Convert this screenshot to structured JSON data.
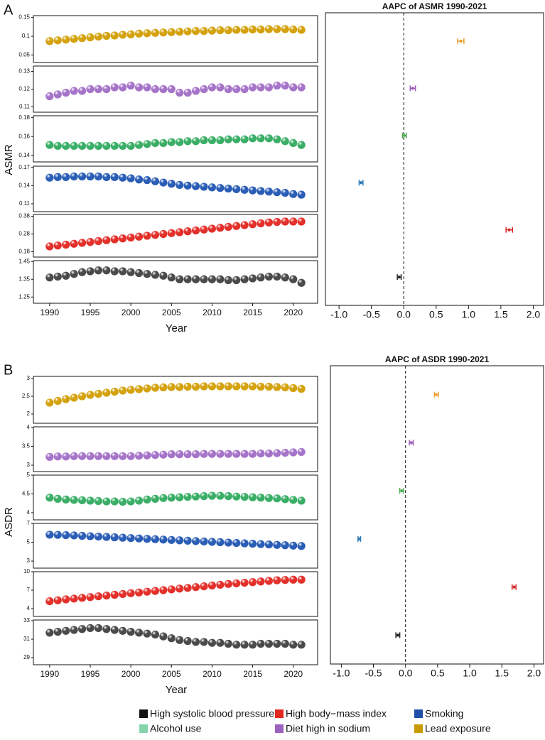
{
  "legend": [
    {
      "name": "High systolic blood pressure",
      "color": "#111111"
    },
    {
      "name": "High body−mass index",
      "color": "#e3281f"
    },
    {
      "name": "Smoking",
      "color": "#1f4fa8"
    },
    {
      "name": "Alcohol use",
      "color": "#85d3aa"
    },
    {
      "name": "Diet high in sodium",
      "color": "#9b62c0"
    },
    {
      "name": "Lead exposure",
      "color": "#c99a00"
    }
  ],
  "chart_data": [
    {
      "type": "line",
      "panel_label": "A",
      "xlabel": "Year",
      "ylabel": "ASMR",
      "x": [
        1990,
        1991,
        1992,
        1993,
        1994,
        1995,
        1996,
        1997,
        1998,
        1999,
        2000,
        2001,
        2002,
        2003,
        2004,
        2005,
        2006,
        2007,
        2008,
        2009,
        2010,
        2011,
        2012,
        2013,
        2014,
        2015,
        2016,
        2017,
        2018,
        2019,
        2020,
        2021
      ],
      "xlim": [
        1988,
        2023
      ],
      "xticks": [
        1990,
        1995,
        2000,
        2005,
        2010,
        2015,
        2020
      ],
      "series": [
        {
          "color": "#d4a20e",
          "ylim": [
            0.03,
            0.155
          ],
          "yticks": [
            0.05,
            0.1,
            0.15
          ],
          "values": [
            0.087,
            0.089,
            0.091,
            0.093,
            0.095,
            0.097,
            0.099,
            0.101,
            0.102,
            0.104,
            0.105,
            0.107,
            0.108,
            0.109,
            0.11,
            0.111,
            0.112,
            0.113,
            0.114,
            0.114,
            0.115,
            0.116,
            0.116,
            0.117,
            0.117,
            0.118,
            0.118,
            0.119,
            0.119,
            0.119,
            0.118,
            0.117
          ]
        },
        {
          "color": "#a574c9",
          "ylim": [
            0.107,
            0.133
          ],
          "yticks": [
            0.11,
            0.12,
            0.13
          ],
          "values": [
            0.116,
            0.117,
            0.118,
            0.119,
            0.119,
            0.12,
            0.12,
            0.12,
            0.121,
            0.121,
            0.122,
            0.121,
            0.121,
            0.12,
            0.12,
            0.12,
            0.118,
            0.118,
            0.119,
            0.12,
            0.121,
            0.121,
            0.12,
            0.12,
            0.12,
            0.121,
            0.121,
            0.121,
            0.122,
            0.122,
            0.121,
            0.121
          ]
        },
        {
          "color": "#3aae66",
          "ylim": [
            0.133,
            0.182
          ],
          "yticks": [
            0.14,
            0.16,
            0.18
          ],
          "values": [
            0.151,
            0.15,
            0.15,
            0.15,
            0.15,
            0.15,
            0.15,
            0.15,
            0.15,
            0.15,
            0.15,
            0.151,
            0.152,
            0.153,
            0.153,
            0.154,
            0.154,
            0.155,
            0.155,
            0.156,
            0.156,
            0.156,
            0.157,
            0.157,
            0.157,
            0.158,
            0.158,
            0.158,
            0.157,
            0.155,
            0.153,
            0.151
          ]
        },
        {
          "color": "#2a5db5",
          "ylim": [
            0.097,
            0.172
          ],
          "yticks": [
            0.11,
            0.14,
            0.17
          ],
          "values": [
            0.153,
            0.154,
            0.154,
            0.155,
            0.155,
            0.155,
            0.155,
            0.154,
            0.154,
            0.153,
            0.152,
            0.15,
            0.149,
            0.147,
            0.145,
            0.143,
            0.141,
            0.14,
            0.139,
            0.138,
            0.137,
            0.136,
            0.135,
            0.134,
            0.133,
            0.132,
            0.131,
            0.13,
            0.129,
            0.128,
            0.126,
            0.125
          ]
        },
        {
          "color": "#e3302a",
          "ylim": [
            0.15,
            0.39
          ],
          "yticks": [
            0.18,
            0.28,
            0.38
          ],
          "values": [
            0.21,
            0.215,
            0.22,
            0.225,
            0.23,
            0.235,
            0.24,
            0.245,
            0.25,
            0.255,
            0.26,
            0.265,
            0.27,
            0.275,
            0.28,
            0.285,
            0.29,
            0.295,
            0.3,
            0.305,
            0.31,
            0.315,
            0.32,
            0.325,
            0.33,
            0.335,
            0.34,
            0.345,
            0.348,
            0.35,
            0.35,
            0.35
          ]
        },
        {
          "color": "#4a4a4a",
          "ylim": [
            1.215,
            1.455
          ],
          "yticks": [
            1.25,
            1.35,
            1.45
          ],
          "values": [
            1.36,
            1.365,
            1.37,
            1.38,
            1.39,
            1.395,
            1.4,
            1.4,
            1.395,
            1.395,
            1.39,
            1.385,
            1.38,
            1.375,
            1.37,
            1.36,
            1.35,
            1.35,
            1.35,
            1.35,
            1.35,
            1.35,
            1.345,
            1.345,
            1.35,
            1.355,
            1.36,
            1.365,
            1.365,
            1.36,
            1.35,
            1.33
          ]
        }
      ]
    },
    {
      "type": "forest",
      "title": "AAPC of ASMR 1990-2021",
      "xlim": [
        -1.21,
        2.16
      ],
      "xticks": [
        {
          "value": -1,
          "label": "-1.0"
        },
        {
          "value": -0.5,
          "label": "-0.5"
        },
        {
          "value": 0,
          "label": "0.0"
        },
        {
          "value": 0.5,
          "label": "0.5"
        },
        {
          "value": 1,
          "label": "1.0"
        },
        {
          "value": 1.5,
          "label": "1.5"
        },
        {
          "value": 2,
          "label": "2.0"
        }
      ],
      "colors": [
        "#e8a030",
        "#9b59b6",
        "#4caf50",
        "#2a7ab8",
        "#d62728",
        "#222222"
      ],
      "values": [
        0.88,
        0.14,
        0.01,
        -0.66,
        1.63,
        -0.07
      ],
      "errors": [
        0.05,
        0.04,
        0.03,
        0.03,
        0.05,
        0.03
      ]
    },
    {
      "type": "line",
      "panel_label": "B",
      "xlabel": "Year",
      "ylabel": "ASDR",
      "x": [
        1990,
        1991,
        1992,
        1993,
        1994,
        1995,
        1996,
        1997,
        1998,
        1999,
        2000,
        2001,
        2002,
        2003,
        2004,
        2005,
        2006,
        2007,
        2008,
        2009,
        2010,
        2011,
        2012,
        2013,
        2014,
        2015,
        2016,
        2017,
        2018,
        2019,
        2020,
        2021
      ],
      "xlim": [
        1988,
        2023
      ],
      "xticks": [
        1990,
        1995,
        2000,
        2005,
        2010,
        2015,
        2020
      ],
      "series": [
        {
          "color": "#d4a20e",
          "ylim": [
            1.74,
            3.06
          ],
          "yticks": [
            2,
            2.5,
            3
          ],
          "values": [
            2.32,
            2.37,
            2.42,
            2.46,
            2.5,
            2.54,
            2.57,
            2.6,
            2.63,
            2.66,
            2.68,
            2.7,
            2.72,
            2.74,
            2.75,
            2.76,
            2.76,
            2.77,
            2.77,
            2.78,
            2.78,
            2.78,
            2.78,
            2.78,
            2.78,
            2.78,
            2.77,
            2.77,
            2.76,
            2.75,
            2.73,
            2.71
          ]
        },
        {
          "color": "#a574c9",
          "ylim": [
            2.83,
            4.02
          ],
          "yticks": [
            3,
            3.5,
            4
          ],
          "values": [
            3.22,
            3.23,
            3.23,
            3.24,
            3.24,
            3.24,
            3.24,
            3.24,
            3.24,
            3.24,
            3.24,
            3.25,
            3.26,
            3.27,
            3.28,
            3.29,
            3.29,
            3.29,
            3.29,
            3.3,
            3.3,
            3.3,
            3.3,
            3.3,
            3.3,
            3.3,
            3.31,
            3.31,
            3.32,
            3.33,
            3.34,
            3.35
          ]
        },
        {
          "color": "#3aae66",
          "ylim": [
            3.81,
            5.0
          ],
          "yticks": [
            4,
            4.5,
            5
          ],
          "values": [
            4.4,
            4.37,
            4.35,
            4.34,
            4.33,
            4.32,
            4.31,
            4.3,
            4.3,
            4.29,
            4.3,
            4.32,
            4.35,
            4.37,
            4.39,
            4.4,
            4.41,
            4.42,
            4.43,
            4.44,
            4.45,
            4.45,
            4.44,
            4.43,
            4.42,
            4.41,
            4.4,
            4.39,
            4.38,
            4.36,
            4.34,
            4.32
          ]
        },
        {
          "color": "#2a5db5",
          "ylim": [
            2.25,
            7.0
          ],
          "yticks": [
            3,
            5,
            7
          ],
          "values": [
            5.8,
            5.78,
            5.75,
            5.72,
            5.68,
            5.64,
            5.6,
            5.56,
            5.52,
            5.48,
            5.44,
            5.4,
            5.36,
            5.32,
            5.28,
            5.24,
            5.2,
            5.16,
            5.12,
            5.08,
            5.04,
            5.0,
            4.96,
            4.92,
            4.88,
            4.84,
            4.8,
            4.76,
            4.72,
            4.68,
            4.64,
            4.6
          ]
        },
        {
          "color": "#e3302a",
          "ylim": [
            2.73,
            10
          ],
          "yticks": [
            4,
            7,
            10
          ],
          "values": [
            5.2,
            5.35,
            5.5,
            5.62,
            5.75,
            5.87,
            6.0,
            6.12,
            6.25,
            6.37,
            6.5,
            6.62,
            6.75,
            6.87,
            7.0,
            7.12,
            7.25,
            7.37,
            7.5,
            7.62,
            7.75,
            7.87,
            8.0,
            8.1,
            8.2,
            8.3,
            8.4,
            8.5,
            8.6,
            8.65,
            8.7,
            8.7
          ]
        },
        {
          "color": "#4a4a4a",
          "ylim": [
            28.23,
            33.08
          ],
          "yticks": [
            29,
            31,
            33
          ],
          "values": [
            31.7,
            31.8,
            31.9,
            32.0,
            32.1,
            32.2,
            32.2,
            32.1,
            32.0,
            31.9,
            31.8,
            31.7,
            31.6,
            31.5,
            31.3,
            31.1,
            30.9,
            30.8,
            30.7,
            30.7,
            30.6,
            30.6,
            30.5,
            30.4,
            30.4,
            30.4,
            30.5,
            30.5,
            30.5,
            30.5,
            30.4,
            30.4
          ]
        }
      ]
    },
    {
      "type": "forest",
      "title": "AAPC of ASDR 1990-2021",
      "xlim": [
        -1.17,
        2.15
      ],
      "xticks": [
        {
          "value": -1,
          "label": "-1.0"
        },
        {
          "value": -0.5,
          "label": "-0.5"
        },
        {
          "value": 0,
          "label": "0.0"
        },
        {
          "value": 0.5,
          "label": "0.5"
        },
        {
          "value": 1,
          "label": "1.0"
        },
        {
          "value": 1.5,
          "label": "1.5"
        },
        {
          "value": 2,
          "label": "2.0"
        }
      ],
      "colors": [
        "#e8a030",
        "#9b59b6",
        "#4caf50",
        "#2a7ab8",
        "#d62728",
        "#222222"
      ],
      "values": [
        0.48,
        0.09,
        -0.06,
        -0.72,
        1.69,
        -0.12
      ],
      "errors": [
        0.03,
        0.03,
        0.03,
        0.02,
        0.03,
        0.03
      ]
    }
  ]
}
